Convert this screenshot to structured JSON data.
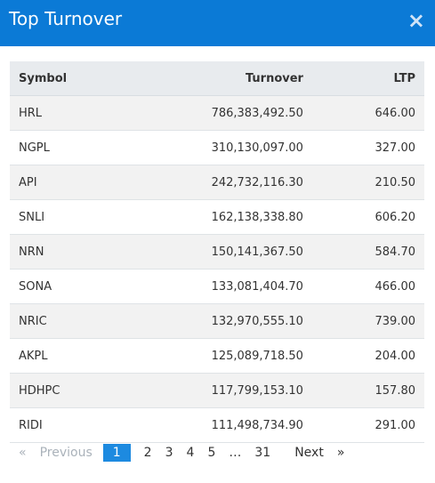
{
  "header": {
    "title": "Top Turnover",
    "close": "×"
  },
  "table": {
    "columns": [
      "Symbol",
      "Turnover",
      "LTP"
    ],
    "rows": [
      [
        "HRL",
        "786,383,492.50",
        "646.00"
      ],
      [
        "NGPL",
        "310,130,097.00",
        "327.00"
      ],
      [
        "API",
        "242,732,116.30",
        "210.50"
      ],
      [
        "SNLI",
        "162,138,338.80",
        "606.20"
      ],
      [
        "NRN",
        "150,141,367.50",
        "584.70"
      ],
      [
        "SONA",
        "133,081,404.70",
        "466.00"
      ],
      [
        "NRIC",
        "132,970,555.10",
        "739.00"
      ],
      [
        "AKPL",
        "125,089,718.50",
        "204.00"
      ],
      [
        "HDHPC",
        "117,799,153.10",
        "157.80"
      ],
      [
        "RIDI",
        "111,498,734.90",
        "291.00"
      ]
    ]
  },
  "pagination": {
    "first": "«",
    "previous": "Previous",
    "pages": [
      "1",
      "2",
      "3",
      "4",
      "5",
      "…",
      "31"
    ],
    "active": "1",
    "next": "Next",
    "last": "»"
  }
}
